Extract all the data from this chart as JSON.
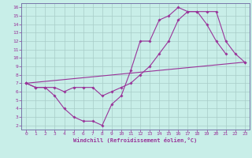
{
  "xlabel": "Windchill (Refroidissement éolien,°C)",
  "bg_color": "#c8eee8",
  "grid_color": "#a8ccc8",
  "line_color": "#993399",
  "spine_color": "#7777aa",
  "xlim": [
    -0.5,
    23.5
  ],
  "ylim": [
    1.5,
    16.5
  ],
  "xticks": [
    0,
    1,
    2,
    3,
    4,
    5,
    6,
    7,
    8,
    9,
    10,
    11,
    12,
    13,
    14,
    15,
    16,
    17,
    18,
    19,
    20,
    21,
    22,
    23
  ],
  "yticks": [
    2,
    3,
    4,
    5,
    6,
    7,
    8,
    9,
    10,
    11,
    12,
    13,
    14,
    15,
    16
  ],
  "curve1_x": [
    0,
    1,
    2,
    3,
    4,
    5,
    6,
    7,
    8,
    9,
    10,
    11,
    12,
    13,
    14,
    15,
    16,
    17,
    18,
    19,
    20,
    21
  ],
  "curve1_y": [
    7,
    6.5,
    6.5,
    5.5,
    4.0,
    3.0,
    2.5,
    2.5,
    2.0,
    4.5,
    5.5,
    8.5,
    12.0,
    12.0,
    14.5,
    15.0,
    16.0,
    15.5,
    15.5,
    14.0,
    12.0,
    10.5
  ],
  "curve2_x": [
    0,
    1,
    2,
    3,
    4,
    5,
    6,
    7,
    8,
    9,
    10,
    11,
    12,
    13,
    14,
    15,
    16,
    17,
    18,
    19,
    20,
    21,
    22,
    23
  ],
  "curve2_y": [
    7,
    6.5,
    6.5,
    6.5,
    6.0,
    6.5,
    6.5,
    6.5,
    5.5,
    6.0,
    6.5,
    7.0,
    8.0,
    9.0,
    10.5,
    12.0,
    14.5,
    15.5,
    15.5,
    15.5,
    15.5,
    12.0,
    10.5,
    9.5
  ],
  "curve3_x": [
    0,
    23
  ],
  "curve3_y": [
    7,
    9.5
  ]
}
